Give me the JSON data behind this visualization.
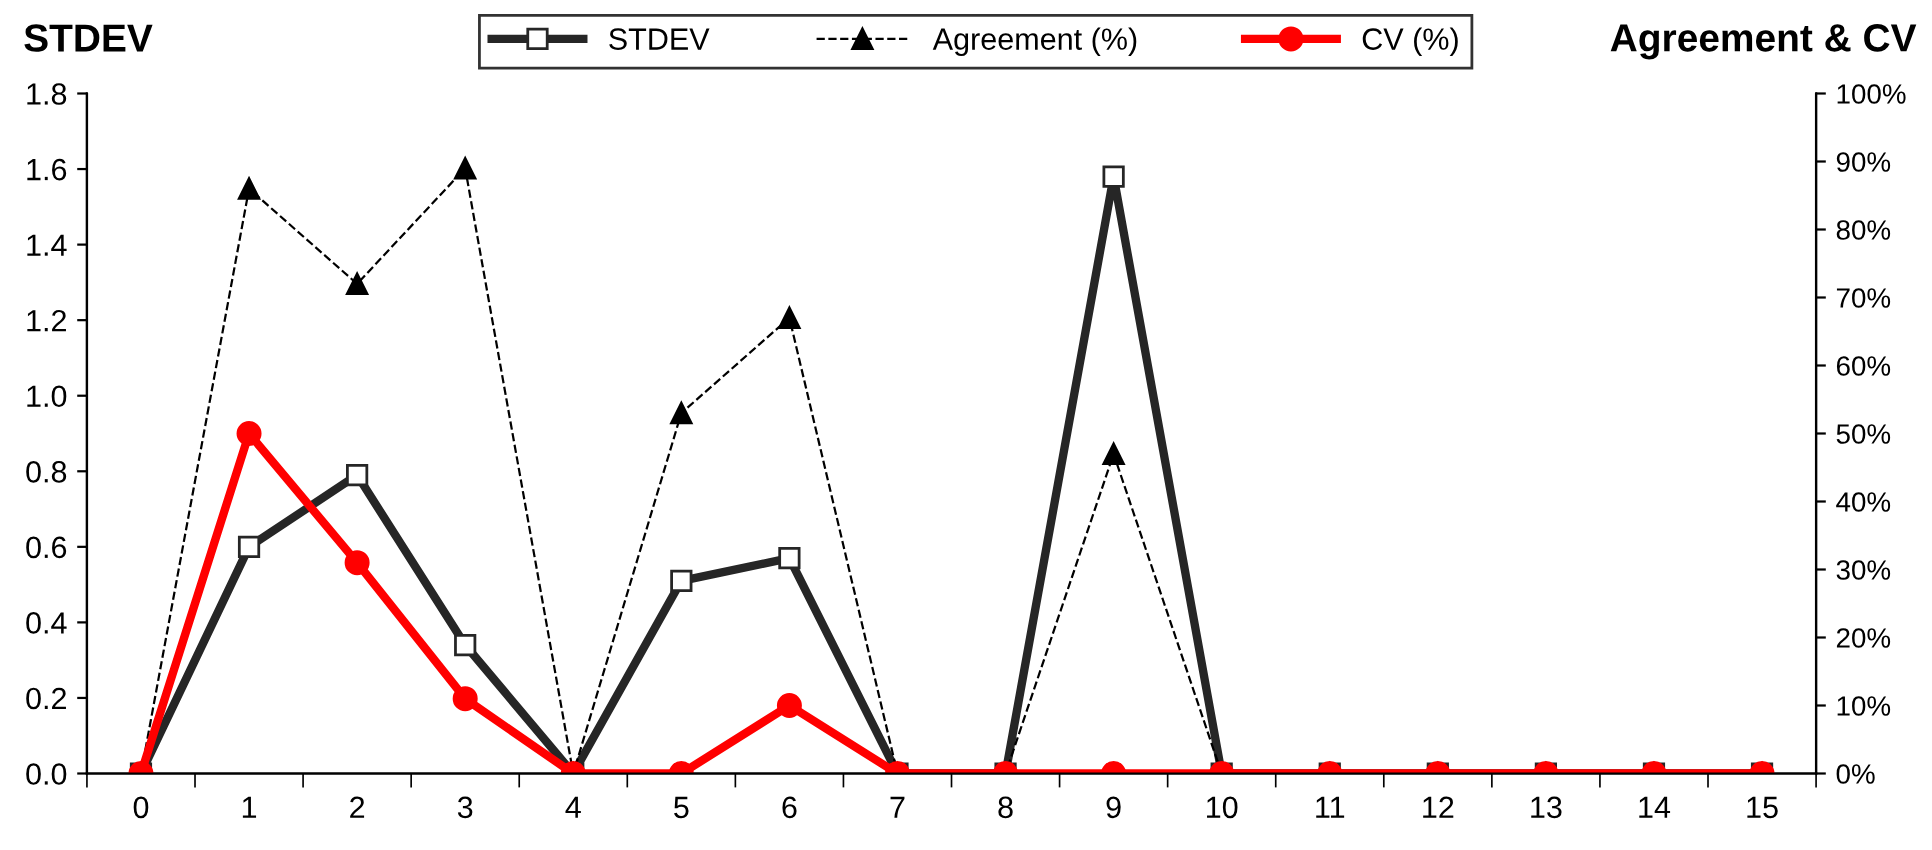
{
  "chart_data": {
    "type": "line",
    "ylabel": "STDEV",
    "y2label": "Agreement & CV",
    "categories": [
      "0",
      "1",
      "2",
      "3",
      "4",
      "5",
      "6",
      "7",
      "8",
      "9",
      "10",
      "11",
      "12",
      "13",
      "14",
      "15"
    ],
    "ylim": [
      0,
      1.8
    ],
    "yticks": [
      {
        "value": 0,
        "label": "0.0"
      },
      {
        "value": 0.2,
        "label": "0.2"
      },
      {
        "value": 0.4,
        "label": "0.4"
      },
      {
        "value": 0.6,
        "label": "0.6"
      },
      {
        "value": 0.8,
        "label": "0.8"
      },
      {
        "value": 1.0,
        "label": "1.0"
      },
      {
        "value": 1.2,
        "label": "1.2"
      },
      {
        "value": 1.4,
        "label": "1.4"
      },
      {
        "value": 1.6,
        "label": "1.6"
      },
      {
        "value": 1.8,
        "label": "1.8"
      }
    ],
    "y2lim": [
      0,
      100
    ],
    "y2ticks": [
      {
        "value": 0,
        "label": "0%"
      },
      {
        "value": 10,
        "label": "10%"
      },
      {
        "value": 20,
        "label": "20%"
      },
      {
        "value": 30,
        "label": "30%"
      },
      {
        "value": 40,
        "label": "40%"
      },
      {
        "value": 50,
        "label": "50%"
      },
      {
        "value": 60,
        "label": "60%"
      },
      {
        "value": 70,
        "label": "70%"
      },
      {
        "value": 80,
        "label": "80%"
      },
      {
        "value": 90,
        "label": "90%"
      },
      {
        "value": 100,
        "label": "100%"
      }
    ],
    "grid": false,
    "legend": "top",
    "series": [
      {
        "name": "STDEV",
        "color": "#262626",
        "marker": "square",
        "line_style": "solid",
        "values": [
          0,
          0.6,
          0.79,
          0.34,
          0,
          0.51,
          0.57,
          0,
          0,
          1.58,
          0,
          0,
          0,
          0,
          0,
          0
        ]
      },
      {
        "name": "Agreement (%)",
        "color": "#000000",
        "marker": "triangle",
        "line_style": "dashed",
        "axis": "y2",
        "values": [
          0,
          86,
          72,
          89,
          0,
          53,
          67,
          0,
          0,
          47,
          0,
          0,
          0,
          0,
          0,
          0
        ]
      },
      {
        "name": "CV (%)",
        "color": "#ff0000",
        "marker": "circle",
        "line_style": "solid",
        "axis": "y2",
        "values": [
          0,
          50,
          31,
          11,
          0,
          0,
          10,
          0,
          0,
          0,
          0,
          0,
          0,
          0,
          0,
          0
        ]
      }
    ]
  }
}
